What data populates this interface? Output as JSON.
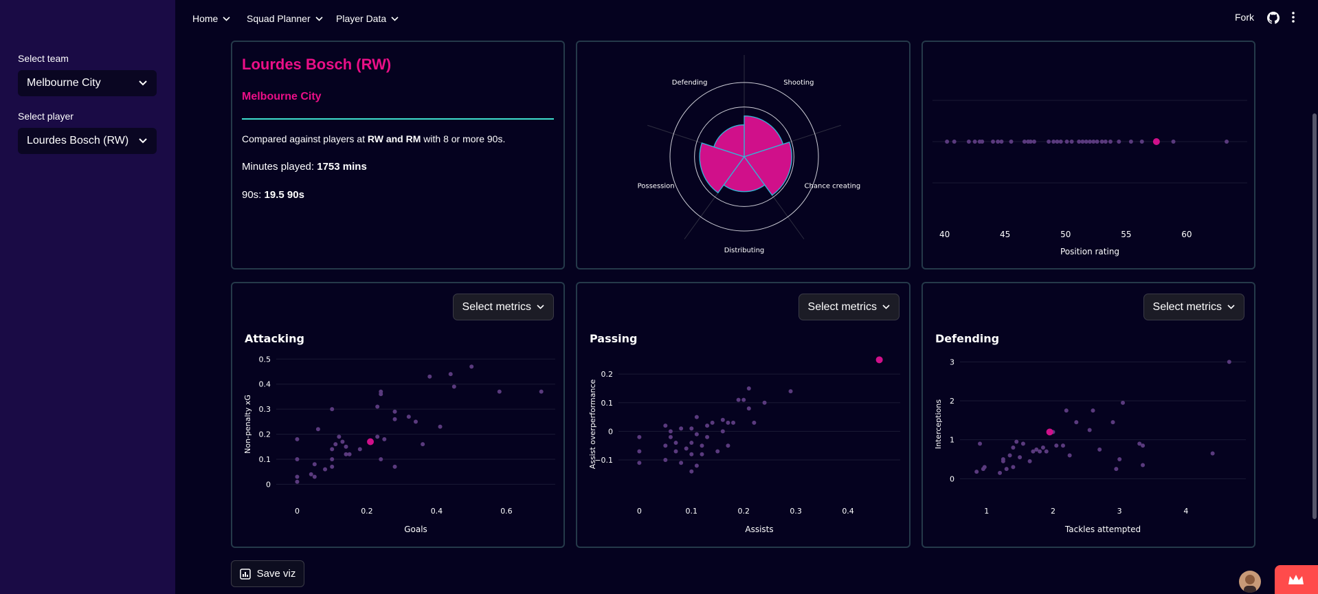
{
  "sidebar": {
    "team_label": "Select team",
    "team_value": "Melbourne City",
    "player_label": "Select player",
    "player_value": "Lourdes Bosch (RW)"
  },
  "nav": {
    "items": [
      "Home",
      "Squad Planner",
      "Player Data"
    ],
    "fork": "Fork"
  },
  "info": {
    "player_name": "Lourdes Bosch (RW)",
    "team": "Melbourne City",
    "compare_prefix": "Compared against players at ",
    "compare_positions": "RW and RM",
    "compare_suffix": " with 8 or more 90s.",
    "minutes_label": "Minutes played: ",
    "minutes_value": "1753 mins",
    "nineties_label": "90s: ",
    "nineties_value": "19.5 90s"
  },
  "select_metrics_label": "Select metrics",
  "save_label": "Save viz",
  "colors": {
    "accent": "#ea0f87",
    "rule": "#3ee0d0",
    "dot": "#5a3a7e",
    "border": "#253a4a",
    "highlight": "#d0108a"
  },
  "chart_data": [
    {
      "type": "polar-bar",
      "title": "",
      "categories": [
        "Shooting",
        "Chance creating",
        "Distributing",
        "Possession",
        "Defending"
      ],
      "values": [
        0.55,
        0.64,
        0.47,
        0.6,
        0.43
      ],
      "rmax": 1.0,
      "rings": [
        0.33,
        0.67,
        1.0
      ]
    },
    {
      "type": "scatter",
      "title": "",
      "xlabel": "Position rating",
      "ylabel": "",
      "xlim": [
        39,
        65
      ],
      "xticks": [
        40,
        45,
        50,
        55,
        60
      ],
      "others_x": [
        40.2,
        40.8,
        42.0,
        42.5,
        42.9,
        43.1,
        44.0,
        44.4,
        44.7,
        45.5,
        46.6,
        46.9,
        47.1,
        47.4,
        48.6,
        49.0,
        49.3,
        49.6,
        50.1,
        50.5,
        51.1,
        51.4,
        51.7,
        52.0,
        52.3,
        52.6,
        53.0,
        53.3,
        53.7,
        54.4,
        55.4,
        56.3,
        58.9,
        63.3
      ],
      "highlight_x": 57.5
    },
    {
      "type": "scatter",
      "title": "Attacking",
      "xlabel": "Goals",
      "ylabel": "Non-penalty xG",
      "xlim": [
        -0.06,
        0.74
      ],
      "ylim": [
        -0.04,
        0.52
      ],
      "xticks": [
        0,
        0.2,
        0.4,
        0.6
      ],
      "yticks": [
        0,
        0.1,
        0.2,
        0.3,
        0.4,
        0.5
      ],
      "others": [
        [
          0,
          0.01
        ],
        [
          0,
          0.03
        ],
        [
          0,
          0.1
        ],
        [
          0,
          0.18
        ],
        [
          0.04,
          0.04
        ],
        [
          0.05,
          0.03
        ],
        [
          0.05,
          0.08
        ],
        [
          0.06,
          0.22
        ],
        [
          0.08,
          0.06
        ],
        [
          0.1,
          0.07
        ],
        [
          0.1,
          0.1
        ],
        [
          0.1,
          0.14
        ],
        [
          0.1,
          0.3
        ],
        [
          0.11,
          0.16
        ],
        [
          0.12,
          0.19
        ],
        [
          0.13,
          0.17
        ],
        [
          0.14,
          0.12
        ],
        [
          0.14,
          0.15
        ],
        [
          0.15,
          0.12
        ],
        [
          0.18,
          0.14
        ],
        [
          0.23,
          0.19
        ],
        [
          0.23,
          0.31
        ],
        [
          0.24,
          0.1
        ],
        [
          0.24,
          0.36
        ],
        [
          0.24,
          0.37
        ],
        [
          0.25,
          0.18
        ],
        [
          0.28,
          0.07
        ],
        [
          0.28,
          0.26
        ],
        [
          0.28,
          0.29
        ],
        [
          0.32,
          0.27
        ],
        [
          0.34,
          0.25
        ],
        [
          0.36,
          0.16
        ],
        [
          0.38,
          0.43
        ],
        [
          0.41,
          0.23
        ],
        [
          0.44,
          0.44
        ],
        [
          0.45,
          0.39
        ],
        [
          0.5,
          0.47
        ],
        [
          0.58,
          0.37
        ],
        [
          0.7,
          0.37
        ]
      ],
      "highlight": [
        0.21,
        0.17
      ]
    },
    {
      "type": "scatter",
      "title": "Passing",
      "xlabel": "Assists",
      "ylabel": "Assist overperformance",
      "xlim": [
        -0.04,
        0.5
      ],
      "ylim": [
        -0.22,
        0.27
      ],
      "xticks": [
        0,
        0.1,
        0.2,
        0.3,
        0.4
      ],
      "yticks": [
        -0.1,
        0,
        0.1,
        0.2
      ],
      "others": [
        [
          0,
          -0.11
        ],
        [
          0,
          -0.07
        ],
        [
          0,
          -0.02
        ],
        [
          0.05,
          -0.1
        ],
        [
          0.05,
          -0.05
        ],
        [
          0.05,
          0.02
        ],
        [
          0.06,
          0
        ],
        [
          0.06,
          -0.02
        ],
        [
          0.07,
          -0.04
        ],
        [
          0.07,
          -0.07
        ],
        [
          0.08,
          -0.11
        ],
        [
          0.08,
          0.01
        ],
        [
          0.09,
          -0.06
        ],
        [
          0.1,
          -0.14
        ],
        [
          0.1,
          -0.08
        ],
        [
          0.1,
          -0.04
        ],
        [
          0.1,
          0.01
        ],
        [
          0.11,
          -0.01
        ],
        [
          0.11,
          0.05
        ],
        [
          0.12,
          -0.05
        ],
        [
          0.12,
          -0.08
        ],
        [
          0.11,
          -0.12
        ],
        [
          0.13,
          -0.02
        ],
        [
          0.13,
          0.02
        ],
        [
          0.14,
          0.03
        ],
        [
          0.15,
          -0.07
        ],
        [
          0.16,
          0
        ],
        [
          0.16,
          0.04
        ],
        [
          0.17,
          -0.05
        ],
        [
          0.17,
          0.03
        ],
        [
          0.18,
          0.03
        ],
        [
          0.19,
          0.11
        ],
        [
          0.2,
          0.11
        ],
        [
          0.21,
          0.08
        ],
        [
          0.21,
          0.15
        ],
        [
          0.22,
          0.03
        ],
        [
          0.24,
          0.1
        ],
        [
          0.29,
          0.14
        ]
      ],
      "highlight": [
        0.46,
        0.25
      ]
    },
    {
      "type": "scatter",
      "title": "Defending",
      "xlabel": "Tackles attempted",
      "ylabel": "Interceptions",
      "xlim": [
        0.6,
        4.9
      ],
      "ylim": [
        -0.4,
        3.2
      ],
      "xticks": [
        1,
        2,
        3,
        4
      ],
      "yticks": [
        0,
        1,
        2,
        3
      ],
      "others": [
        [
          0.85,
          0.18
        ],
        [
          0.9,
          0.9
        ],
        [
          0.95,
          0.25
        ],
        [
          0.97,
          0.3
        ],
        [
          1.2,
          0.15
        ],
        [
          1.25,
          0.45
        ],
        [
          1.25,
          0.5
        ],
        [
          1.3,
          0.25
        ],
        [
          1.35,
          0.6
        ],
        [
          1.4,
          0.3
        ],
        [
          1.4,
          0.8
        ],
        [
          1.45,
          0.95
        ],
        [
          1.5,
          0.55
        ],
        [
          1.55,
          0.9
        ],
        [
          1.65,
          0.45
        ],
        [
          1.7,
          0.7
        ],
        [
          1.75,
          0.75
        ],
        [
          1.8,
          0.7
        ],
        [
          1.85,
          0.8
        ],
        [
          1.9,
          0.7
        ],
        [
          2.0,
          1.2
        ],
        [
          2.05,
          0.85
        ],
        [
          2.15,
          0.85
        ],
        [
          2.2,
          1.75
        ],
        [
          2.25,
          0.6
        ],
        [
          2.35,
          1.45
        ],
        [
          2.55,
          1.25
        ],
        [
          2.6,
          1.75
        ],
        [
          2.7,
          0.75
        ],
        [
          2.9,
          1.45
        ],
        [
          2.95,
          0.25
        ],
        [
          3.0,
          0.5
        ],
        [
          3.05,
          1.95
        ],
        [
          3.3,
          0.9
        ],
        [
          3.35,
          0.85
        ],
        [
          3.35,
          0.35
        ],
        [
          4.4,
          0.65
        ],
        [
          4.65,
          3.0
        ]
      ],
      "highlight": [
        1.95,
        1.2
      ]
    }
  ]
}
